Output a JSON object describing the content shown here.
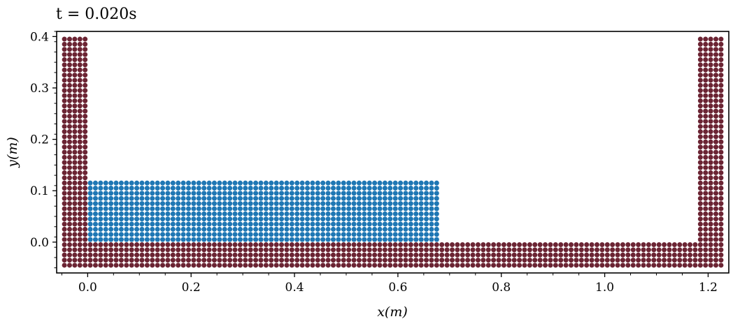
{
  "chart_data": {
    "type": "scatter",
    "title": "t =  0.020s",
    "xlabel": "x(m)",
    "ylabel": "y(m)",
    "xlim": [
      -0.06,
      1.24
    ],
    "ylim": [
      -0.06,
      0.41
    ],
    "xticks": [
      0.0,
      0.2,
      0.4,
      0.6,
      0.8,
      1.0,
      1.2
    ],
    "xtick_labels": [
      "0.0",
      "0.2",
      "0.4",
      "0.6",
      "0.8",
      "1.0",
      "1.2"
    ],
    "yticks": [
      0.0,
      0.1,
      0.2,
      0.3,
      0.4
    ],
    "ytick_labels": [
      "0.0",
      "0.1",
      "0.2",
      "0.3",
      "0.4"
    ],
    "grid": false,
    "particle_spacing": 0.01,
    "series": [
      {
        "role": "boundary",
        "color": "#6b2433",
        "blocks": [
          {
            "x_range": [
              -0.045,
              1.225
            ],
            "y_range": [
              -0.045,
              -0.005
            ]
          },
          {
            "x_range": [
              -0.045,
              -0.005
            ],
            "y_range": [
              0.005,
              0.395
            ]
          },
          {
            "x_range": [
              1.185,
              1.225
            ],
            "y_range": [
              0.005,
              0.395
            ]
          }
        ]
      },
      {
        "role": "fluid",
        "color": "#1f77b4",
        "blocks": [
          {
            "x_range": [
              0.005,
              0.675
            ],
            "y_range": [
              0.005,
              0.115
            ]
          }
        ]
      }
    ]
  }
}
